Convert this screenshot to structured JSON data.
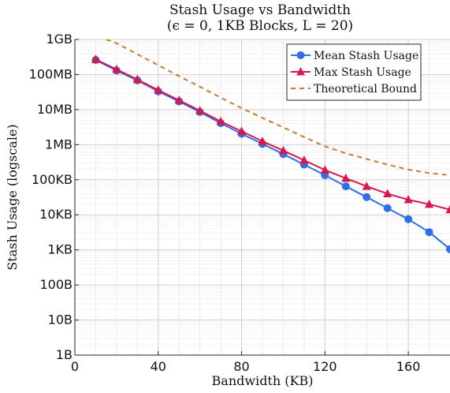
{
  "chart_data": {
    "type": "line",
    "title": "Stash Usage vs Bandwidth",
    "subtitle": "(ϵ = 0, 1KB Blocks, L = 20)",
    "xlabel": "Bandwidth (KB)",
    "ylabel": "Stash Usage (logscale)",
    "xlim": [
      0,
      180
    ],
    "ylim": [
      1,
      1000000000
    ],
    "yscale": "log",
    "grid": true,
    "legend_position": "top-right",
    "xticks": [
      0,
      40,
      80,
      120,
      160
    ],
    "xtick_labels": [
      "0",
      "40",
      "80",
      "120",
      "160"
    ],
    "yticks": [
      1,
      10,
      100,
      1000,
      10000,
      100000,
      1000000,
      10000000,
      100000000,
      1000000000
    ],
    "ytick_labels": [
      "1B",
      "10B",
      "100B",
      "1KB",
      "10KB",
      "100KB",
      "1MB",
      "10MB",
      "100MB",
      "1GB"
    ],
    "series": [
      {
        "name": "Mean Stash Usage",
        "color": "#2f6ee6",
        "marker": "circle",
        "line": "solid",
        "x": [
          10,
          20,
          30,
          40,
          50,
          60,
          70,
          80,
          90,
          100,
          110,
          120,
          130,
          140,
          150,
          160,
          170,
          180
        ],
        "y": [
          260000000,
          130000000,
          68000000,
          33000000,
          17000000,
          8500000,
          4100000,
          2050000,
          1050000,
          540000,
          270000,
          135000,
          65000,
          32000,
          15500,
          7500,
          3200,
          1050
        ]
      },
      {
        "name": "Max Stash Usage",
        "color": "#d8174a",
        "marker": "triangle",
        "line": "solid",
        "x": [
          10,
          20,
          30,
          40,
          50,
          60,
          70,
          80,
          90,
          100,
          110,
          120,
          130,
          140,
          150,
          160,
          170,
          180
        ],
        "y": [
          270000000,
          140000000,
          72000000,
          36000000,
          18500000,
          9300000,
          4600000,
          2400000,
          1250000,
          680000,
          360000,
          190000,
          110000,
          65000,
          40000,
          27000,
          20000,
          14000
        ]
      },
      {
        "name": "Theoretical Bound",
        "color": "#c97d2a",
        "marker": "none",
        "line": "dashed",
        "x": [
          15,
          20,
          30,
          40,
          50,
          60,
          70,
          80,
          90,
          100,
          110,
          120,
          130,
          140,
          150,
          160,
          170,
          180
        ],
        "y": [
          1000000000,
          780000000,
          380000000,
          185000000,
          90000000,
          45000000,
          22000000,
          11000000,
          5800000,
          3100000,
          1650000,
          900000,
          570000,
          390000,
          270000,
          195000,
          155000,
          135000
        ]
      }
    ]
  }
}
